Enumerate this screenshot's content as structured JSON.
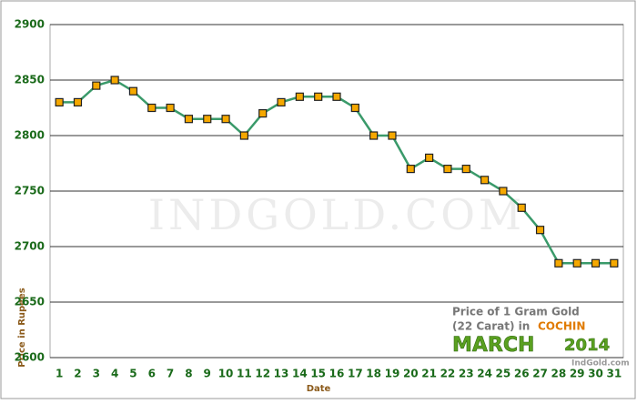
{
  "chart_data": {
    "type": "line",
    "x_label": "Date",
    "y_label": "Price in Rupees",
    "watermark": "IndGold.com",
    "annotation": {
      "line1": "Price of 1 Gram Gold",
      "line2": "(22 Carat) in",
      "city": "COCHIN",
      "month": "MARCH",
      "year": "2014",
      "site": "IndGold.com"
    },
    "categories": [
      "1",
      "2",
      "3",
      "4",
      "5",
      "6",
      "7",
      "8",
      "9",
      "10",
      "11",
      "12",
      "13",
      "14",
      "15",
      "16",
      "17",
      "18",
      "19",
      "20",
      "21",
      "22",
      "23",
      "24",
      "25",
      "26",
      "27",
      "28",
      "29",
      "30",
      "31"
    ],
    "series": [
      {
        "color": "#3a9a6a",
        "marker_color": "#f5a800",
        "values": [
          2830,
          2830,
          2845,
          2850,
          2840,
          2825,
          2825,
          2815,
          2815,
          2815,
          2800,
          2820,
          2830,
          2835,
          2835,
          2835,
          2825,
          2800,
          2800,
          2770,
          2780,
          2770,
          2770,
          2760,
          2750,
          2735,
          2715,
          2685,
          2685,
          2685,
          2685
        ]
      }
    ],
    "ylim": [
      2600,
      2900
    ],
    "yticks": [
      2600,
      2650,
      2700,
      2750,
      2800,
      2850,
      2900
    ],
    "grid": true
  }
}
